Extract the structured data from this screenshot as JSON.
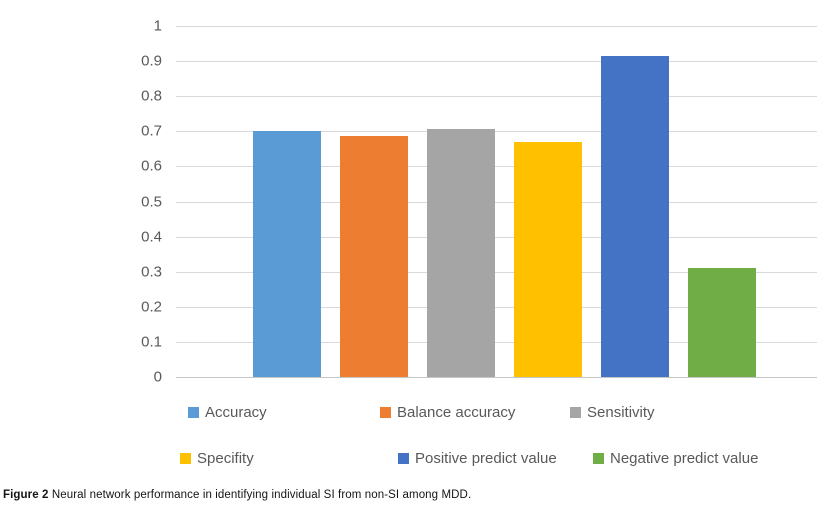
{
  "figure": {
    "caption_prefix": "Figure 2",
    "caption_text": " Neural network performance in identifying individual SI from non-SI among MDD."
  },
  "chart_data": {
    "type": "bar",
    "title": "",
    "categories": [
      ""
    ],
    "series": [
      {
        "name": "Accuracy",
        "value": 0.702,
        "color": "#5B9BD5"
      },
      {
        "name": "Balance accuracy",
        "value": 0.688,
        "color": "#ED7D31"
      },
      {
        "name": "Sensitivity",
        "value": 0.708,
        "color": "#A5A5A5"
      },
      {
        "name": "Specifity",
        "value": 0.67,
        "color": "#FFC000"
      },
      {
        "name": "Positive predict value",
        "value": 0.915,
        "color": "#4472C4"
      },
      {
        "name": "Negative predict value",
        "value": 0.312,
        "color": "#70AD47"
      }
    ],
    "xlabel": "",
    "ylabel": "",
    "ylim": [
      0,
      1
    ],
    "yticks": [
      "1",
      "0.9",
      "0.8",
      "0.7",
      "0.6",
      "0.5",
      "0.4",
      "0.3",
      "0.2",
      "0.1",
      "0"
    ],
    "grid": true,
    "gridline_color": "#D9D9D9",
    "tick_label_color": "#595959",
    "legend_position": "bottom"
  }
}
